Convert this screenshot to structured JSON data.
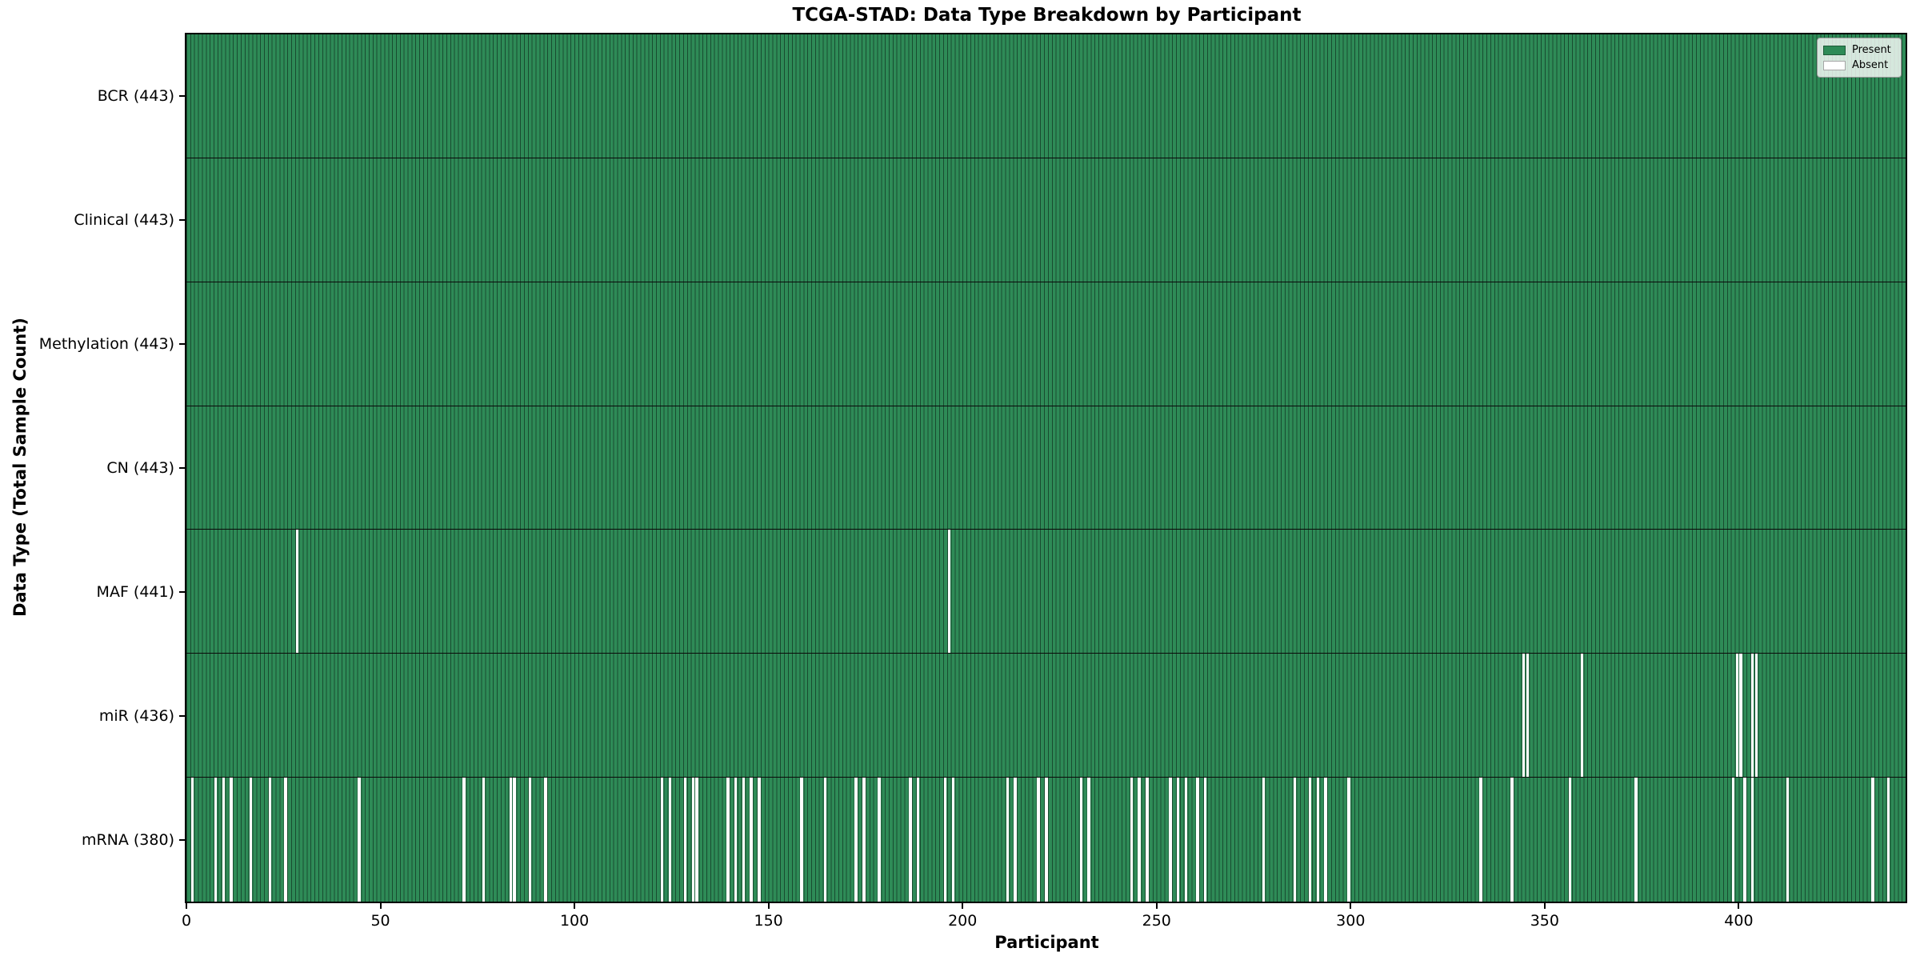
{
  "title": "TCGA-STAD: Data Type Breakdown by Participant",
  "colors": {
    "present": "#2e8b57",
    "absent": "#ffffff",
    "bar_edge": "#1a1a1a",
    "axis": "#000000",
    "legend_border": "#9a9a9a"
  },
  "chart_data": {
    "type": "heatmap",
    "title": "TCGA-STAD: Data Type Breakdown by Participant",
    "xlabel": "Participant",
    "ylabel": "Data Type (Total Sample Count)",
    "n_participants": 443,
    "x_ticks": [
      0,
      50,
      100,
      150,
      200,
      250,
      300,
      350,
      400
    ],
    "x_range": [
      0,
      443
    ],
    "grid": "row-separators-only",
    "legend_position": "upper right",
    "legend": [
      {
        "label": "Present",
        "color": "#2e8b57"
      },
      {
        "label": "Absent",
        "color": "#ffffff"
      }
    ],
    "rows": [
      {
        "data_type": "BCR",
        "label": "BCR (443)",
        "present_count": 443,
        "absent_participants": []
      },
      {
        "data_type": "Clinical",
        "label": "Clinical (443)",
        "present_count": 443,
        "absent_participants": []
      },
      {
        "data_type": "Methylation",
        "label": "Methylation (443)",
        "present_count": 443,
        "absent_participants": []
      },
      {
        "data_type": "CN",
        "label": "CN (443)",
        "present_count": 443,
        "absent_participants": []
      },
      {
        "data_type": "MAF",
        "label": "MAF (441)",
        "present_count": 441,
        "absent_participants": [
          28,
          196
        ]
      },
      {
        "data_type": "miR",
        "label": "miR (436)",
        "present_count": 436,
        "absent_participants": [
          344,
          345,
          359,
          399,
          400,
          403,
          404
        ]
      },
      {
        "data_type": "mRNA",
        "label": "mRNA (380)",
        "present_count": 380,
        "absent_participants": [
          1,
          7,
          9,
          11,
          16,
          21,
          25,
          44,
          71,
          76,
          83,
          84,
          88,
          92,
          122,
          124,
          128,
          130,
          131,
          139,
          141,
          143,
          145,
          147,
          158,
          164,
          172,
          174,
          178,
          186,
          188,
          195,
          197,
          211,
          213,
          219,
          221,
          230,
          232,
          243,
          245,
          247,
          253,
          255,
          257,
          260,
          262,
          277,
          285,
          289,
          291,
          293,
          299,
          333,
          341,
          356,
          373,
          398,
          401,
          403,
          412,
          434,
          438
        ]
      }
    ]
  }
}
